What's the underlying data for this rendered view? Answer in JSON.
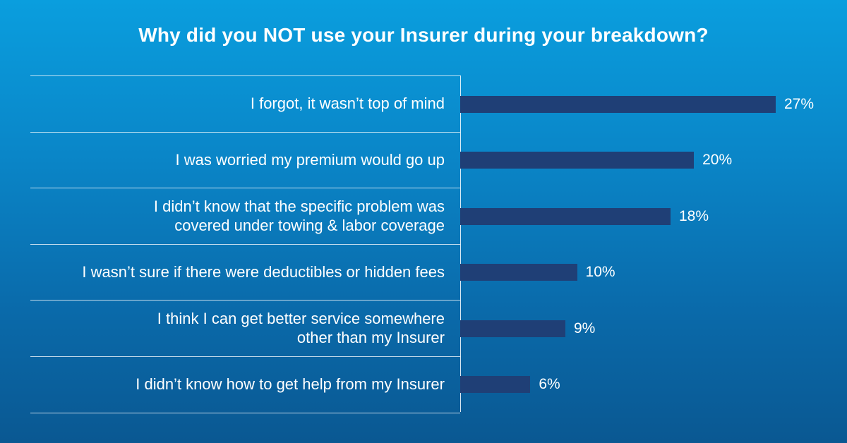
{
  "chart_data": {
    "type": "bar",
    "orientation": "horizontal",
    "title": "Why did you NOT use your Insurer during your breakdown?",
    "categories": [
      "I forgot, it wasn’t top of mind",
      "I was worried my premium would go up",
      "I didn’t know that the specific problem was\ncovered under towing & labor coverage",
      "I wasn’t sure if there were deductibles or hidden fees",
      "I think I can get better service somewhere\nother than my Insurer",
      "I didn’t know how to get help from my Insurer"
    ],
    "values": [
      27,
      20,
      18,
      10,
      9,
      6
    ],
    "value_labels": [
      "27%",
      "20%",
      "18%",
      "10%",
      "9%",
      "6%"
    ],
    "unit": "%",
    "xlim": [
      0,
      30
    ],
    "grid": false,
    "legend": "none",
    "colors": {
      "bar": "#1f3f76",
      "background_top": "#0a9ede",
      "background_bottom": "#0a5892",
      "text": "#ffffff"
    }
  }
}
